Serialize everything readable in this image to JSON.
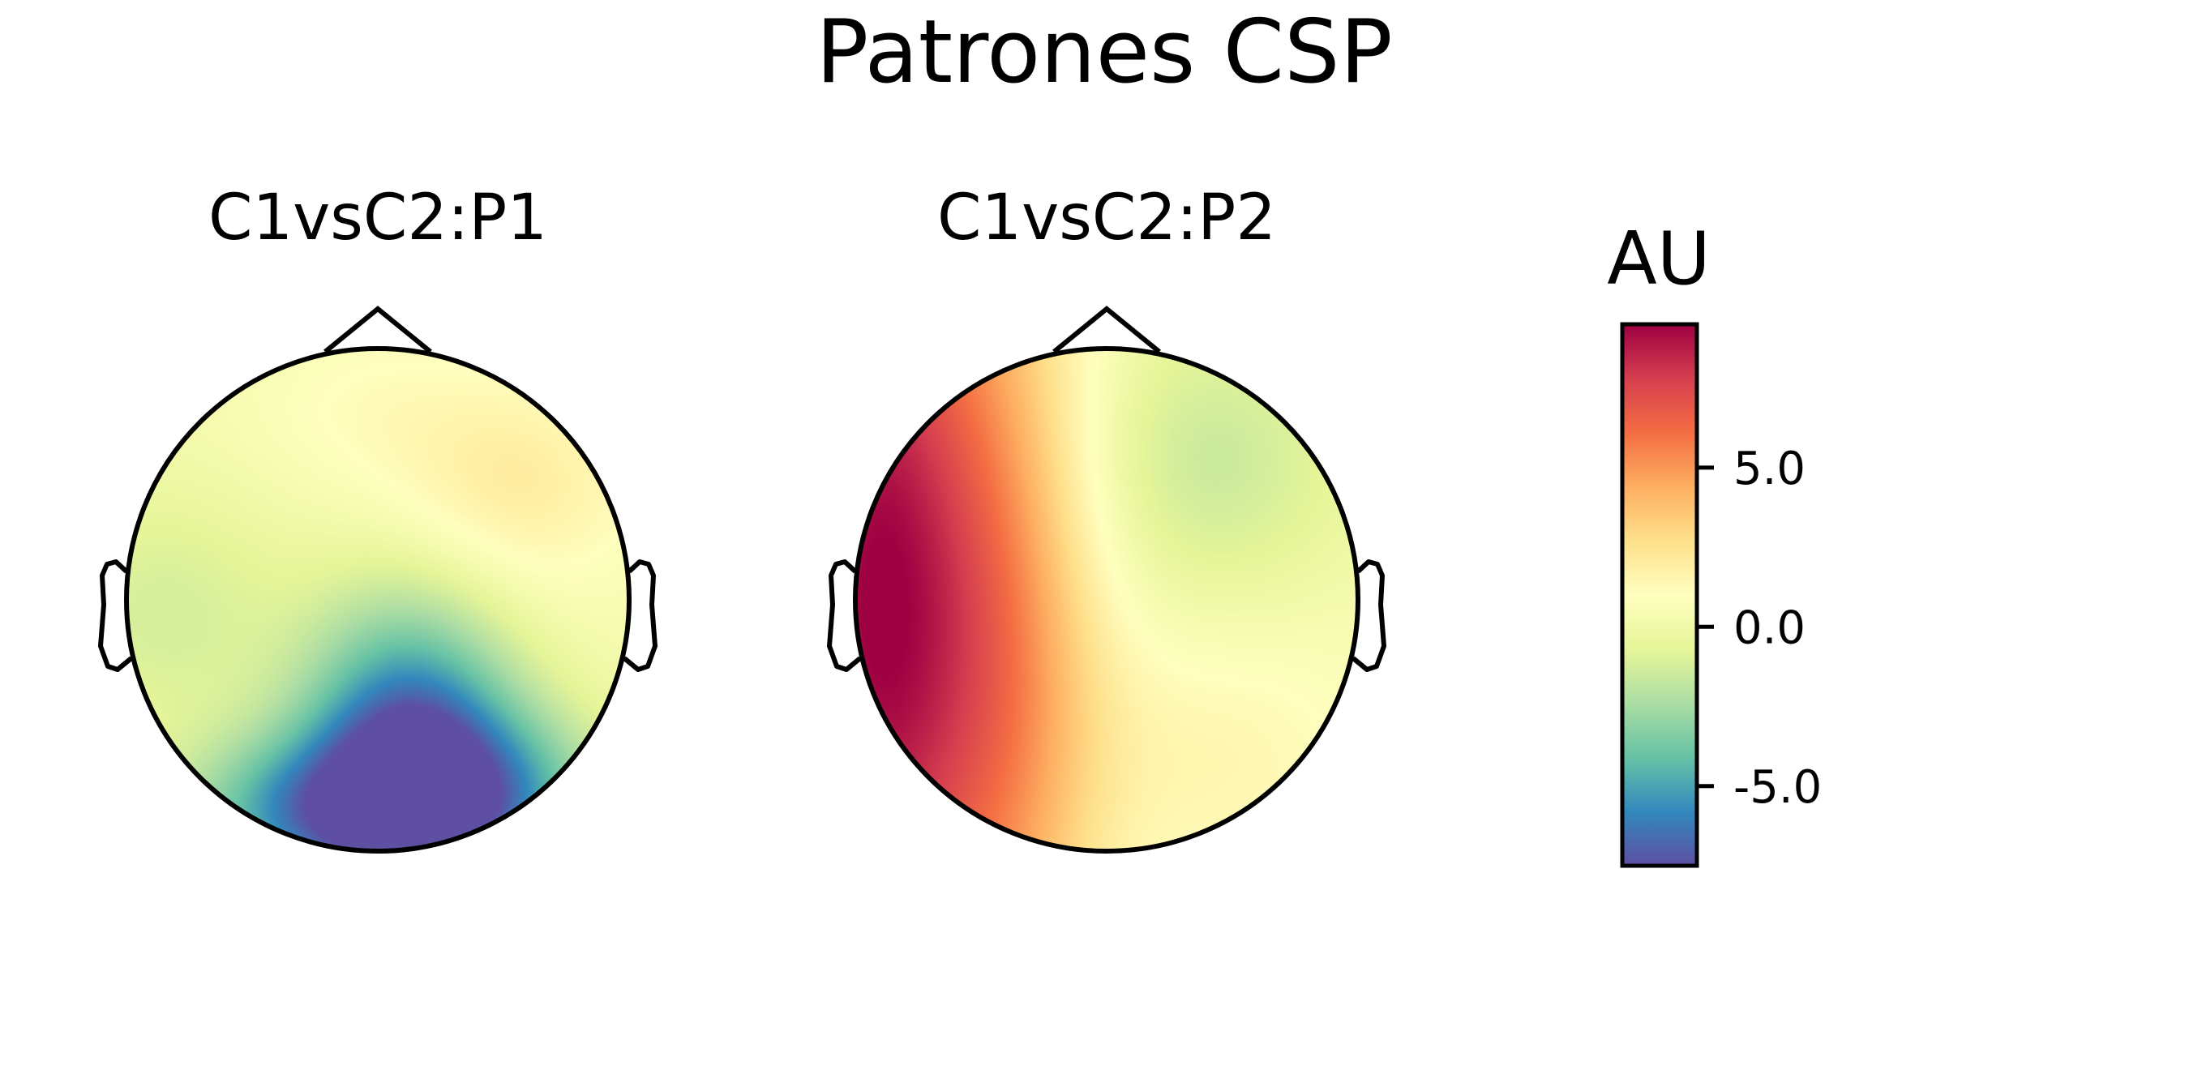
{
  "chart_data": {
    "type": "heatmap",
    "title": "Patrones CSP",
    "panels": [
      {
        "title": "C1vsC2:P1",
        "description_values": {
          "background": 0.3,
          "fields": [
            {
              "at": "posterior-midline",
              "value": -7.0
            },
            {
              "at": "occipital-left",
              "value": -4.5
            },
            {
              "at": "occipital-right",
              "value": -4.0
            },
            {
              "at": "frontal-right",
              "value": 2.0
            },
            {
              "at": "frontal-midline",
              "value": 1.0
            },
            {
              "at": "temporal-left",
              "value": -1.2
            }
          ]
        }
      },
      {
        "title": "C1vsC2:P2",
        "description_values": {
          "background": 0.5,
          "fields": [
            {
              "at": "left-temporal",
              "value": 9.0
            },
            {
              "at": "left-central",
              "value": 4.5
            },
            {
              "at": "right-frontal",
              "value": -1.5
            },
            {
              "at": "right-posterior",
              "value": 1.5
            }
          ]
        }
      }
    ],
    "colorbar": {
      "label": "AU",
      "colormap": "Spectral_r",
      "range": [
        -7.5,
        9.5
      ],
      "ticks": [
        5.0,
        0.0,
        -5.0
      ],
      "tick_labels": [
        "5.0",
        "0.0",
        "-5.0"
      ]
    }
  }
}
